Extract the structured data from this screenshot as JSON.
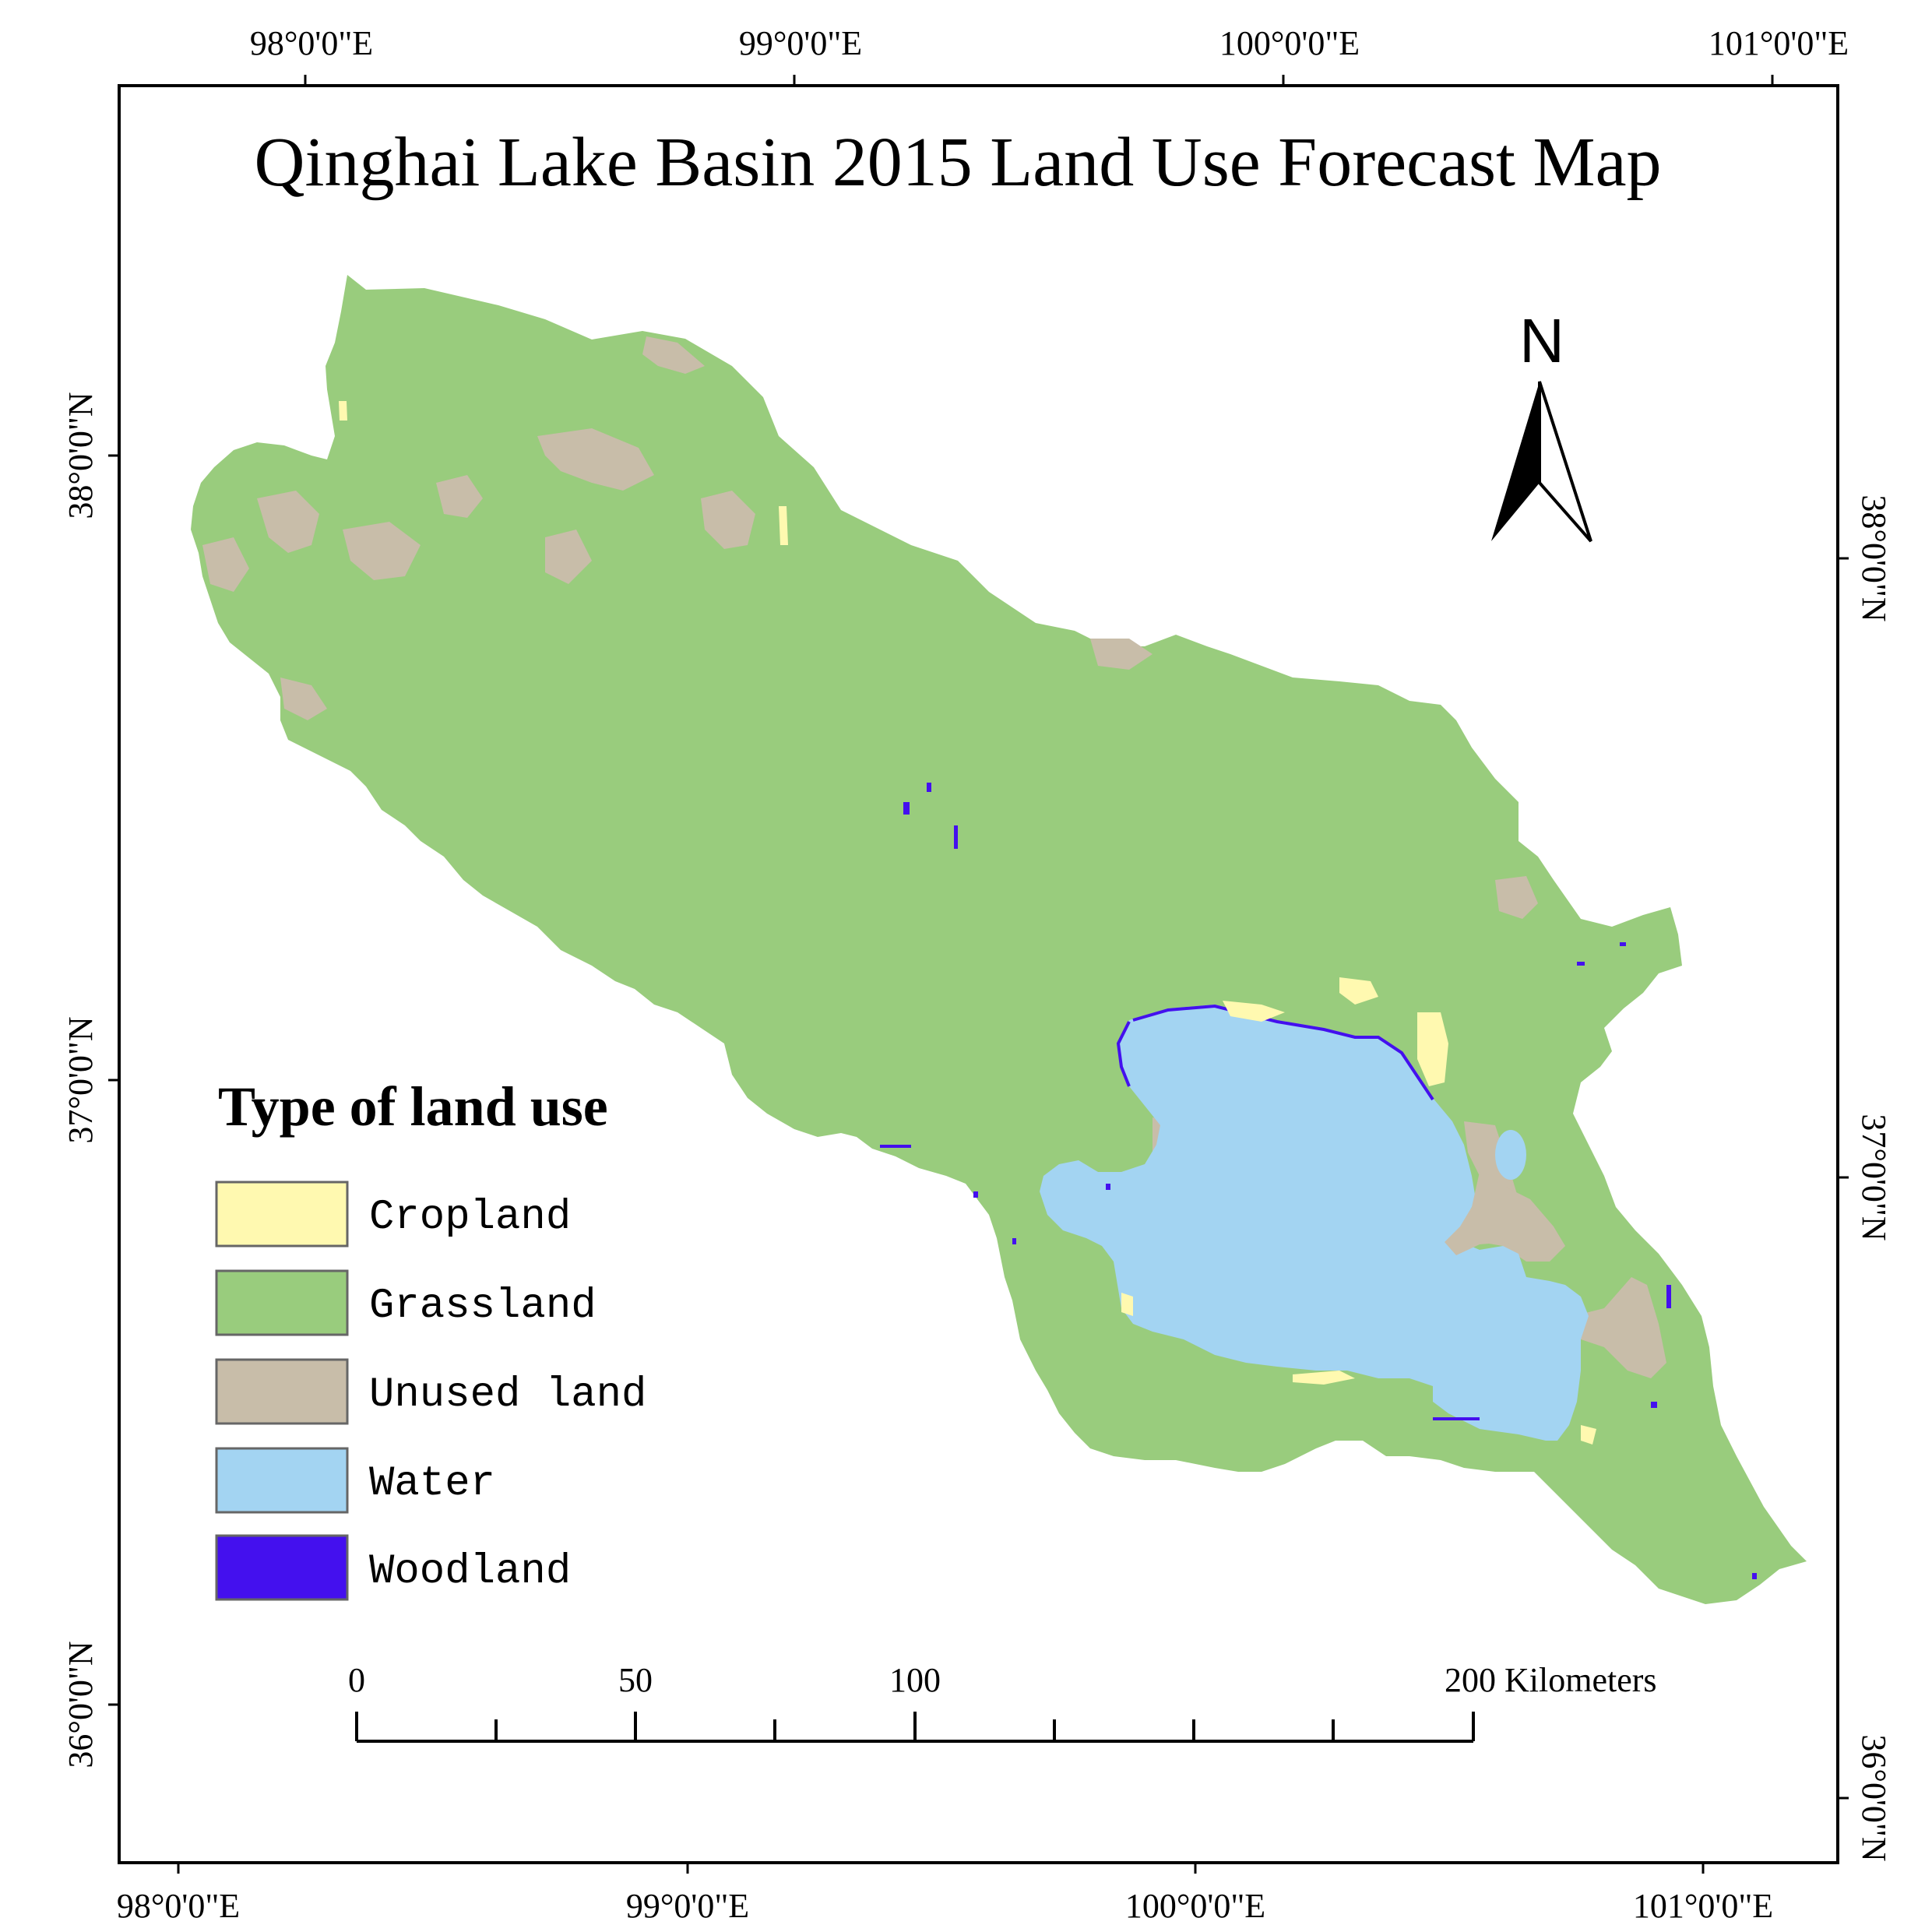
{
  "map": {
    "title": "Qinghai Lake Basin 2015 Land Use Forecast Map",
    "north_label": "N",
    "top_lon_labels": [
      "98°0'0\"E",
      "99°0'0\"E",
      "100°0'0\"E",
      "101°0'0\"E"
    ],
    "bottom_lon_labels": [
      "98°0'0\"E",
      "99°0'0\"E",
      "100°0'0\"E",
      "101°0'0\"E"
    ],
    "left_lat_labels": [
      "38°0'0\"N",
      "37°0'0\"N",
      "36°0'0\"N"
    ],
    "right_lat_labels": [
      "38°0'0\"N",
      "37°0'0\"N",
      "36°0'0\"N"
    ]
  },
  "legend": {
    "title": "Type of land use",
    "items": [
      {
        "label": "Cropland",
        "color": "#fff9b0"
      },
      {
        "label": "Grassland",
        "color": "#99cc7d"
      },
      {
        "label": "Unused land",
        "color": "#c8bda9"
      },
      {
        "label": "Water",
        "color": "#a3d4f2"
      },
      {
        "label": "Woodland",
        "color": "#4410ee"
      }
    ]
  },
  "scale_bar": {
    "labels": [
      "0",
      "50",
      "100",
      "200 Kilometers"
    ]
  }
}
